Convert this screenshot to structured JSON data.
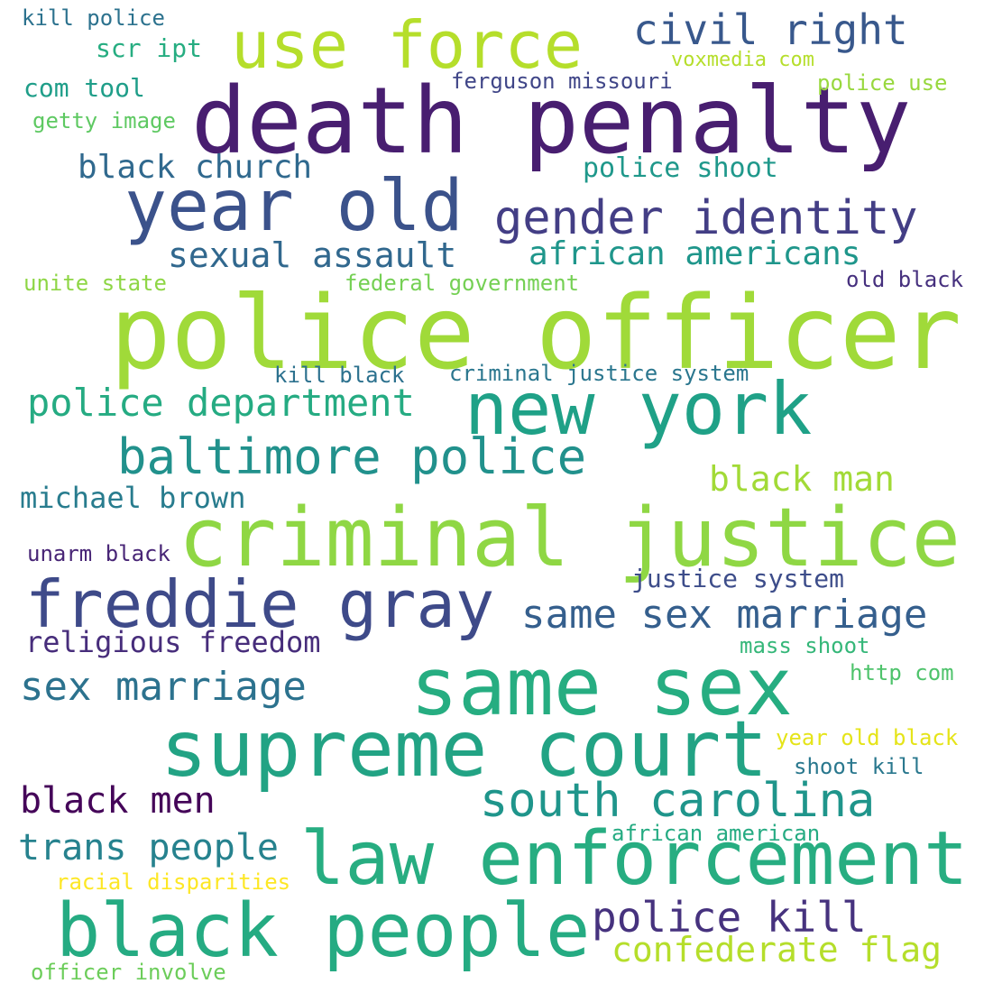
{
  "words": [
    {
      "text": "police officer",
      "color": "#a0da39"
    },
    {
      "text": "death penalty",
      "color": "#481e70"
    },
    {
      "text": "same sex",
      "color": "#26ad81"
    },
    {
      "text": "criminal justice",
      "color": "#8fd744"
    },
    {
      "text": "supreme court",
      "color": "#22a384"
    },
    {
      "text": "law enforcement",
      "color": "#27ad81"
    },
    {
      "text": "black people",
      "color": "#25ab82"
    },
    {
      "text": "year old",
      "color": "#3b528b"
    },
    {
      "text": "new york",
      "color": "#1fa187"
    },
    {
      "text": "use force",
      "color": "#b5de2b"
    },
    {
      "text": "freddie gray",
      "color": "#3e4a89"
    },
    {
      "text": "gender identity",
      "color": "#433e85"
    },
    {
      "text": "baltimore police",
      "color": "#21918c"
    },
    {
      "text": "south carolina",
      "color": "#1f958b"
    },
    {
      "text": "civil right",
      "color": "#38588c"
    },
    {
      "text": "same sex marriage",
      "color": "#355f8d"
    },
    {
      "text": "sex marriage",
      "color": "#2c728e"
    },
    {
      "text": "police department",
      "color": "#25ab82"
    },
    {
      "text": "police kill",
      "color": "#46327e"
    },
    {
      "text": "confederate flag",
      "color": "#b5de2b"
    },
    {
      "text": "trans people",
      "color": "#26828e"
    },
    {
      "text": "black men",
      "color": "#450559"
    },
    {
      "text": "sexual assault",
      "color": "#31688e"
    },
    {
      "text": "african americans",
      "color": "#1f968b"
    },
    {
      "text": "black man",
      "color": "#a2da37"
    },
    {
      "text": "black church",
      "color": "#30698e"
    },
    {
      "text": "religious freedom",
      "color": "#472d7b"
    },
    {
      "text": "michael brown",
      "color": "#287c8e"
    },
    {
      "text": "police shoot",
      "color": "#1f988b"
    },
    {
      "text": "justice system",
      "color": "#3d4d8a"
    },
    {
      "text": "com tool",
      "color": "#1f9e89"
    },
    {
      "text": "scr ipt",
      "color": "#26ad81"
    },
    {
      "text": "criminal justice system",
      "color": "#2a768e"
    },
    {
      "text": "kill black",
      "color": "#2c718e"
    },
    {
      "text": "ferguson missouri",
      "color": "#404688"
    },
    {
      "text": "police use",
      "color": "#98d83e"
    },
    {
      "text": "voxmedia com",
      "color": "#b5de2b"
    },
    {
      "text": "kill police",
      "color": "#2c728e"
    },
    {
      "text": "getty image",
      "color": "#5ec962"
    },
    {
      "text": "unite state",
      "color": "#8ed645"
    },
    {
      "text": "federal government",
      "color": "#75d054"
    },
    {
      "text": "old black",
      "color": "#46307e"
    },
    {
      "text": "unarm black",
      "color": "#482576"
    },
    {
      "text": "mass shoot",
      "color": "#35b779"
    },
    {
      "text": "http com",
      "color": "#4ec36b"
    },
    {
      "text": "year old black",
      "color": "#e5e419"
    },
    {
      "text": "shoot kill",
      "color": "#2a788e"
    },
    {
      "text": "african american",
      "color": "#25ab82"
    },
    {
      "text": "racial disparities",
      "color": "#fde725"
    },
    {
      "text": "officer involve",
      "color": "#6ccd5a"
    }
  ]
}
